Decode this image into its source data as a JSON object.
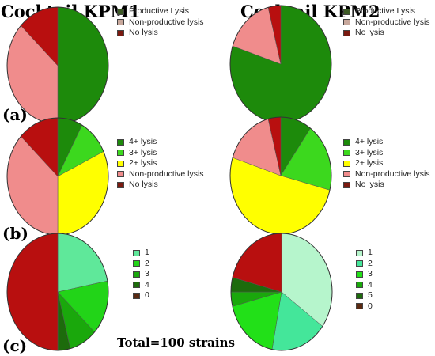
{
  "column_titles": [
    "Cocktail KPM1",
    "Cocktail KPM2"
  ],
  "panel_labels": [
    "(a)",
    "(b)",
    "(c)"
  ],
  "footer": "Total=100 strains",
  "chart_data": [
    {
      "type": "pie",
      "panel": "(a)",
      "column": "Cocktail KPM1",
      "labels": [
        "Productive Lysis",
        "Non-productive lysis",
        "No lysis"
      ],
      "values": [
        50,
        37,
        13
      ],
      "colors": [
        "#1d8a0b",
        "#f08c8c",
        "#b80f0f"
      ],
      "legend_colors": [
        "#3d5a26",
        "#c8a89c",
        "#7a1a10"
      ]
    },
    {
      "type": "pie",
      "panel": "(a)",
      "column": "Cocktail KPM2",
      "labels": [
        "Productive Lysis",
        "Non-productive lysis",
        "No lysis"
      ],
      "values": [
        80,
        16,
        4
      ],
      "colors": [
        "#1d8a0b",
        "#f08c8c",
        "#b80f0f"
      ],
      "legend_colors": [
        "#3d5a26",
        "#c8a89c",
        "#7a1a10"
      ]
    },
    {
      "type": "pie",
      "panel": "(b)",
      "column": "Cocktail KPM1",
      "labels": [
        "4+ lysis",
        "3+ lysis",
        "2+ lysis",
        "Non-productive lysis",
        "No lysis"
      ],
      "values": [
        8,
        10,
        32,
        37,
        13
      ],
      "colors": [
        "#1d8a0b",
        "#3cd81e",
        "#ffff00",
        "#f08c8c",
        "#b80f0f"
      ],
      "legend_colors": [
        "#1d8a0b",
        "#3cd81e",
        "#ffff00",
        "#f08c8c",
        "#7a1a10"
      ]
    },
    {
      "type": "pie",
      "panel": "(b)",
      "column": "Cocktail KPM2",
      "labels": [
        "4+ lysis",
        "3+ lysis",
        "2+ lysis",
        "Non-productive lysis",
        "No lysis"
      ],
      "values": [
        10,
        19,
        51,
        16,
        4
      ],
      "colors": [
        "#1d8a0b",
        "#3cd81e",
        "#ffff00",
        "#f08c8c",
        "#b80f0f"
      ],
      "legend_colors": [
        "#1d8a0b",
        "#3cd81e",
        "#ffff00",
        "#f08c8c",
        "#7a1a10"
      ]
    },
    {
      "type": "pie",
      "panel": "(c)",
      "column": "Cocktail KPM1",
      "labels": [
        "1",
        "2",
        "3",
        "4",
        "0"
      ],
      "values": [
        22,
        15,
        9,
        4,
        50
      ],
      "colors": [
        "#5fe89a",
        "#22d418",
        "#1aa80c",
        "#1d6b0c",
        "#b80f0f"
      ],
      "legend_colors": [
        "#5fe89a",
        "#22d418",
        "#1aa80c",
        "#1d6b0c",
        "#5a2a12"
      ]
    },
    {
      "type": "pie",
      "panel": "(c)",
      "column": "Cocktail KPM2",
      "labels": [
        "1",
        "2",
        "3",
        "4",
        "5",
        "0"
      ],
      "values": [
        35,
        18,
        18,
        4,
        4,
        21
      ],
      "colors": [
        "#b6f5cc",
        "#44e69a",
        "#22e018",
        "#1aa80c",
        "#1d6b0c",
        "#b80f0f"
      ],
      "legend_colors": [
        "#b6f5cc",
        "#44e69a",
        "#22e018",
        "#1aa80c",
        "#1d6b0c",
        "#5a2a12"
      ]
    }
  ]
}
